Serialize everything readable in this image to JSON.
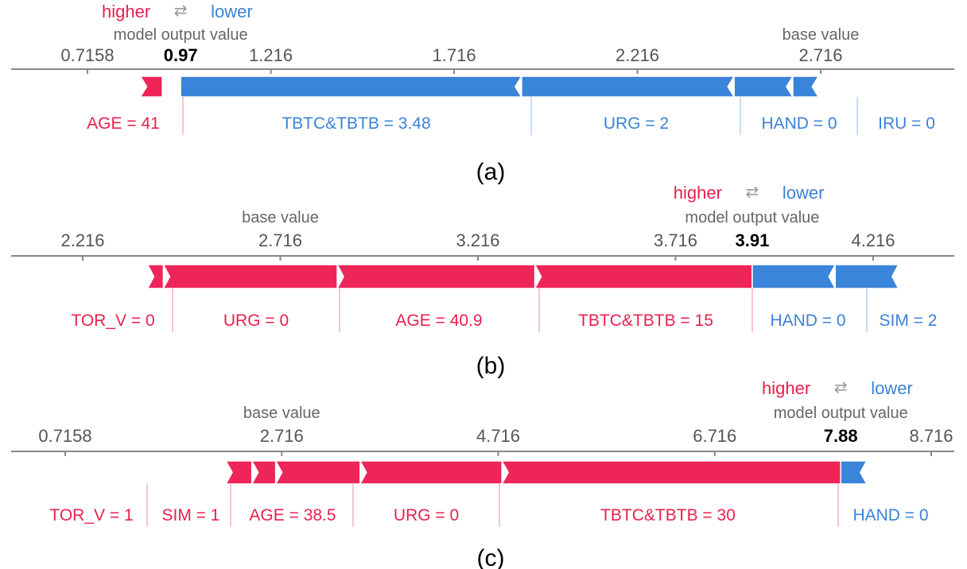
{
  "legend": {
    "higher": "higher",
    "arrows": "⇄",
    "lower": "lower"
  },
  "labels": {
    "model_output": "model output value",
    "base_value": "base value"
  },
  "colors": {
    "positive": "#ee2558",
    "negative": "#3a84d9",
    "pos_text": "#e8204e",
    "neg_text": "#3b82d6",
    "axis": "#888888"
  },
  "chart_data": [
    {
      "type": "force",
      "caption": "(a)",
      "ticks": [
        0.7158,
        1.216,
        1.716,
        2.216,
        2.716
      ],
      "tick_labels": [
        "0.7158",
        "1.216",
        "1.716",
        "2.216",
        "2.716"
      ],
      "base_value": 2.716,
      "output_value": 0.97,
      "output_label": "0.97",
      "features": [
        {
          "name": "AGE = 41",
          "value": 0.92,
          "sign": "pos"
        },
        {
          "name": "TBTC&TBTB = 3.48",
          "value": 1.9,
          "sign": "neg"
        },
        {
          "name": "URG = 2",
          "value": 2.48,
          "sign": "neg"
        },
        {
          "name": "HAND = 0",
          "value": 2.64,
          "sign": "neg"
        },
        {
          "name": "IRU = 0",
          "value": 2.71,
          "sign": "neg"
        }
      ]
    },
    {
      "type": "force",
      "caption": "(b)",
      "ticks": [
        2.216,
        2.716,
        3.216,
        3.716,
        4.216
      ],
      "tick_labels": [
        "2.216",
        "2.716",
        "3.216",
        "3.716",
        "4.216"
      ],
      "base_value": 2.716,
      "output_value": 3.91,
      "output_label": "3.91",
      "features": [
        {
          "name": "TOR_V = 0",
          "value": 2.42,
          "sign": "pos"
        },
        {
          "name": "URG = 0",
          "value": 2.86,
          "sign": "pos"
        },
        {
          "name": "AGE = 40.9",
          "value": 3.36,
          "sign": "pos"
        },
        {
          "name": "TBTC&TBTB = 15",
          "value": 3.91,
          "sign": "pos"
        },
        {
          "name": "HAND = 0",
          "value": 4.12,
          "sign": "neg"
        },
        {
          "name": "SIM = 2",
          "value": 4.28,
          "sign": "neg"
        }
      ]
    },
    {
      "type": "force",
      "caption": "(c)",
      "ticks": [
        0.7158,
        2.716,
        4.716,
        6.716,
        8.716
      ],
      "tick_labels": [
        "0.7158",
        "2.716",
        "4.716",
        "6.716",
        "8.716"
      ],
      "base_value": 2.716,
      "output_value": 7.88,
      "output_label": "7.88",
      "features": [
        {
          "name": "TOR_V = 1",
          "value": 2.44,
          "sign": "pos"
        },
        {
          "name": "SIM = 1",
          "value": 2.66,
          "sign": "pos"
        },
        {
          "name": "AGE = 38.5",
          "value": 3.44,
          "sign": "pos"
        },
        {
          "name": "URG = 0",
          "value": 4.75,
          "sign": "pos"
        },
        {
          "name": "TBTC&TBTB = 30",
          "value": 7.88,
          "sign": "pos"
        },
        {
          "name": "HAND = 0",
          "value": 8.12,
          "sign": "neg"
        }
      ]
    }
  ]
}
